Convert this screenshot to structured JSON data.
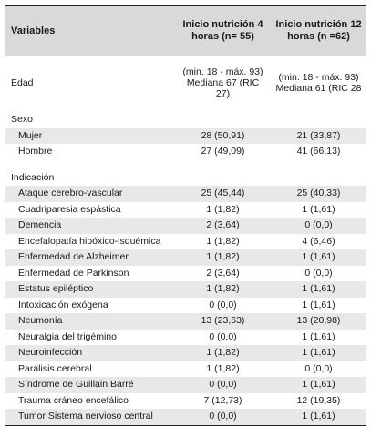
{
  "header": {
    "col_variables": "Variables",
    "col_4h": "Inicio nutrición 4 horas (n= 55)",
    "col_12h": "Inicio nutrición 12 horas (n =62)"
  },
  "edad": {
    "label": "Edad",
    "v4": "(min. 18 - máx. 93) Mediana 67 (RIC 27)",
    "v12": "(min. 18 - máx. 93) Mediana 61 (RIC 28"
  },
  "sexo": {
    "title": "Sexo",
    "rows": [
      {
        "label": "Mujer",
        "v4": "28 (50,91)",
        "v12": "21 (33,87)"
      },
      {
        "label": "Hombre",
        "v4": "27 (49,09)",
        "v12": "41 (66,13)"
      }
    ]
  },
  "indicacion": {
    "title": "Indicación",
    "rows": [
      {
        "label": "Ataque cerebro-vascular",
        "v4": "25 (45,44)",
        "v12": "25 (40,33)"
      },
      {
        "label": "Cuadriparesia espástica",
        "v4": "1 (1,82)",
        "v12": "1 (1,61)"
      },
      {
        "label": "Demencia",
        "v4": "2 (3,64)",
        "v12": "0 (0,0)"
      },
      {
        "label": "Encefalopatía hipóxico-isquémica",
        "v4": "1 (1,82)",
        "v12": "4 (6,46)"
      },
      {
        "label": "Enfermedad de Alzheimer",
        "v4": "1 (1,82)",
        "v12": "1 (1,61)"
      },
      {
        "label": "Enfermedad de Parkinson",
        "v4": "2 (3,64)",
        "v12": "0 (0,0)"
      },
      {
        "label": "Estatus epiléptico",
        "v4": "1 (1,82)",
        "v12": "1 (1,61)"
      },
      {
        "label": "Intoxicación exógena",
        "v4": "0 (0,0)",
        "v12": "1 (1,61)"
      },
      {
        "label": "Neumonía",
        "v4": "13 (23,63)",
        "v12": "13 (20,98)"
      },
      {
        "label": "Neuralgia del trigémino",
        "v4": "0 (0,0)",
        "v12": "1 (1,61)"
      },
      {
        "label": "Neuroinfección",
        "v4": "1 (1,82)",
        "v12": "1 (1,61)"
      },
      {
        "label": "Parálisis cerebral",
        "v4": "1 (1,82)",
        "v12": "0 (0,0)"
      },
      {
        "label": "Síndrome de Guillain Barré",
        "v4": "0 (0,0)",
        "v12": "1 (1,61)"
      },
      {
        "label": "Trauma cráneo encefálico",
        "v4": "7 (12,73)",
        "v12": "12 (19,35)"
      },
      {
        "label": "Tumor Sistema nervioso central",
        "v4": "0 (0,0)",
        "v12": "1 (1,61)"
      }
    ]
  }
}
